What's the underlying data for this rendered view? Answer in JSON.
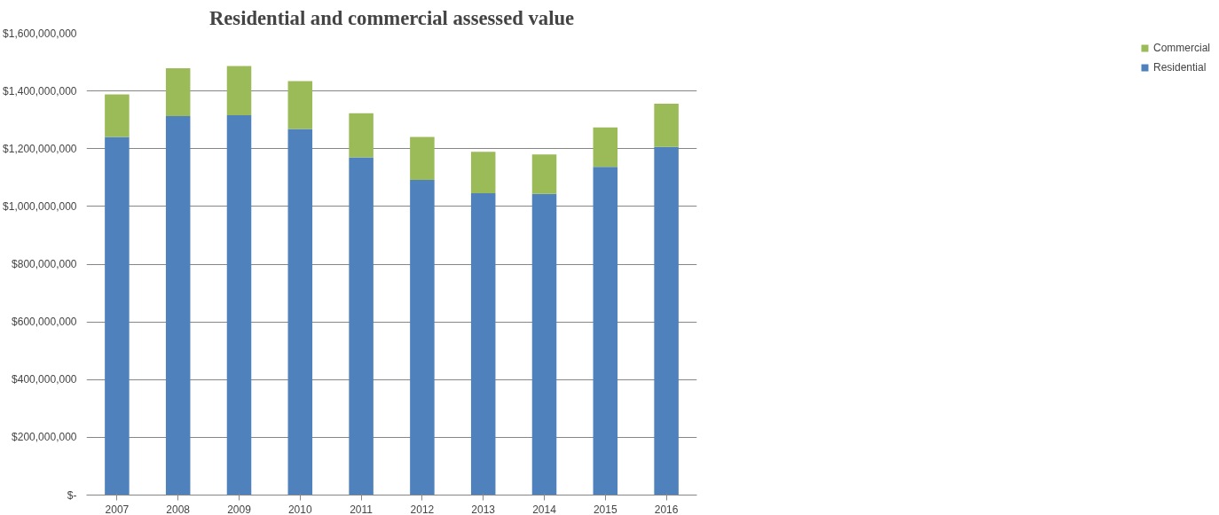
{
  "chart_data": {
    "type": "bar",
    "title": "Residential and commercial assessed value",
    "stacked": true,
    "categories": [
      "2007",
      "2008",
      "2009",
      "2010",
      "2011",
      "2012",
      "2013",
      "2014",
      "2015",
      "2016"
    ],
    "series": [
      {
        "name": "Residential",
        "color": "#4f81bd",
        "values": [
          1241000000,
          1313000000,
          1316000000,
          1268000000,
          1170000000,
          1092000000,
          1046000000,
          1043000000,
          1137000000,
          1206000000
        ]
      },
      {
        "name": "Commercial",
        "color": "#9bbb59",
        "values": [
          147000000,
          166000000,
          170000000,
          166000000,
          153000000,
          149000000,
          143000000,
          137000000,
          137000000,
          150000000
        ]
      }
    ],
    "ylim": [
      0,
      1600000000
    ],
    "yticks": [
      {
        "value": 0,
        "label": "$-"
      },
      {
        "value": 200000000,
        "label": "$200,000,000"
      },
      {
        "value": 400000000,
        "label": "$400,000,000"
      },
      {
        "value": 600000000,
        "label": "$600,000,000"
      },
      {
        "value": 800000000,
        "label": "$800,000,000"
      },
      {
        "value": 1000000000,
        "label": "$1,000,000,000"
      },
      {
        "value": 1200000000,
        "label": "$1,200,000,000"
      },
      {
        "value": 1400000000,
        "label": "$1,400,000,000"
      },
      {
        "value": 1600000000,
        "label": "$1,600,000,000"
      }
    ],
    "grid": "y",
    "legend": "right"
  }
}
